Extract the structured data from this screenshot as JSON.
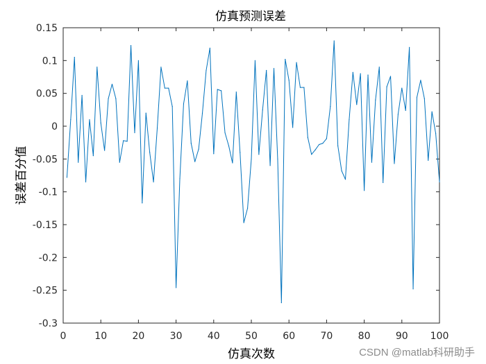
{
  "watermark": "CSDN @matlab科研助手",
  "chart_data": {
    "type": "line",
    "title": "仿真预测误差",
    "xlabel": "仿真次数",
    "ylabel": "误差百分值",
    "xlim": [
      0,
      100
    ],
    "ylim": [
      -0.3,
      0.15
    ],
    "xticks": [
      "0",
      "10",
      "20",
      "30",
      "40",
      "50",
      "60",
      "70",
      "80",
      "90",
      "100"
    ],
    "yticks": [
      "-0.3",
      "-0.25",
      "-0.2",
      "-0.15",
      "-0.1",
      "-0.05",
      "0",
      "0.05",
      "0.1",
      "0.15"
    ],
    "grid": false,
    "line_color": "#0072BD",
    "series": [
      {
        "x": [
          1,
          2,
          3,
          4,
          5,
          6,
          7,
          8,
          9,
          10,
          11,
          12,
          13,
          14,
          15,
          16,
          17,
          18,
          19,
          20,
          21,
          22,
          23,
          24,
          25,
          26,
          27,
          28,
          29,
          30,
          31,
          32,
          33,
          34,
          35,
          36,
          37,
          38,
          39,
          40,
          41,
          42,
          43,
          44,
          45,
          46,
          47,
          48,
          49,
          50,
          51,
          52,
          53,
          54,
          55,
          56,
          57,
          58,
          59,
          60,
          61,
          62,
          63,
          64,
          65,
          66,
          67,
          68,
          69,
          70,
          71,
          72,
          73,
          74,
          75,
          76,
          77,
          78,
          79,
          80,
          81,
          82,
          83,
          84,
          85,
          86,
          87,
          88,
          89,
          90,
          91,
          92,
          93,
          94,
          95,
          96,
          97,
          98,
          99,
          100
        ],
        "values": [
          -0.078,
          0.01,
          0.105,
          -0.055,
          0.047,
          -0.085,
          0.01,
          -0.045,
          0.09,
          0.005,
          -0.037,
          0.042,
          0.064,
          0.042,
          -0.055,
          -0.022,
          -0.023,
          0.123,
          -0.01,
          0.1,
          -0.117,
          0.02,
          -0.04,
          -0.085,
          -0.003,
          0.09,
          0.058,
          0.058,
          0.03,
          -0.246,
          -0.08,
          0.034,
          0.069,
          -0.026,
          -0.054,
          -0.035,
          0.02,
          0.085,
          0.119,
          -0.042,
          0.056,
          0.054,
          -0.01,
          -0.03,
          -0.056,
          0.052,
          -0.04,
          -0.147,
          -0.125,
          -0.05,
          0.1,
          -0.043,
          0.025,
          0.085,
          -0.06,
          0.088,
          -0.05,
          -0.269,
          0.102,
          0.07,
          -0.002,
          0.097,
          0.059,
          0.059,
          -0.017,
          -0.043,
          -0.036,
          -0.028,
          -0.026,
          -0.019,
          0.03,
          0.13,
          -0.03,
          -0.068,
          -0.081,
          0.01,
          0.082,
          0.033,
          0.08,
          -0.098,
          0.078,
          -0.055,
          0.04,
          0.09,
          -0.086,
          0.06,
          0.076,
          -0.057,
          0.018,
          0.058,
          0.024,
          0.12,
          -0.248,
          0.044,
          0.07,
          0.042,
          -0.052,
          0.022,
          -0.011,
          -0.085
        ]
      }
    ]
  }
}
